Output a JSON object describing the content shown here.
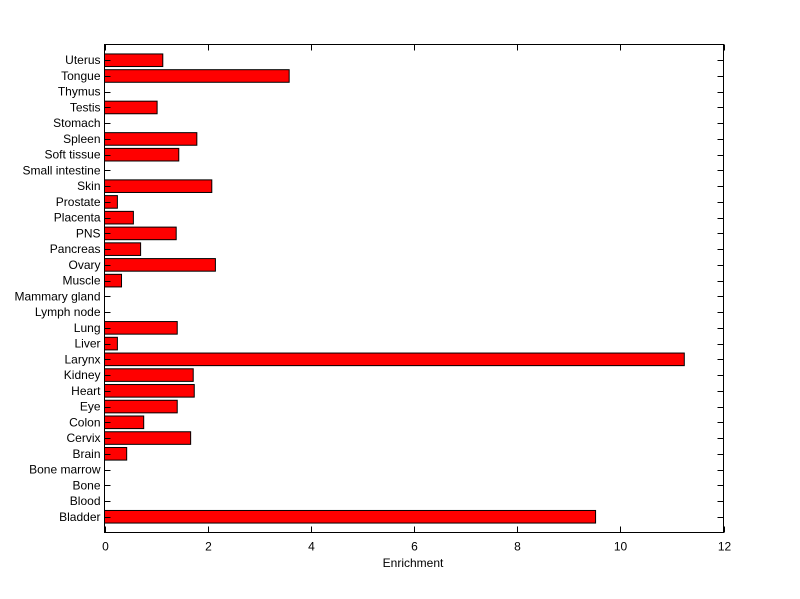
{
  "chart_data": {
    "type": "bar",
    "orientation": "horizontal",
    "title": "",
    "xlabel": "Enrichment",
    "ylabel": "",
    "xlim": [
      0,
      12
    ],
    "xticks": [
      0,
      2,
      4,
      6,
      8,
      10,
      12
    ],
    "grid": false,
    "bar_color": "#ff0000",
    "edge_color": "#000000",
    "categories": [
      "Bladder",
      "Blood",
      "Bone",
      "Bone marrow",
      "Brain",
      "Cervix",
      "Colon",
      "Eye",
      "Heart",
      "Kidney",
      "Larynx",
      "Liver",
      "Lung",
      "Lymph node",
      "Mammary gland",
      "Muscle",
      "Ovary",
      "Pancreas",
      "PNS",
      "Placenta",
      "Prostate",
      "Skin",
      "Small intestine",
      "Soft tissue",
      "Spleen",
      "Stomach",
      "Testis",
      "Thymus",
      "Tongue",
      "Uterus"
    ],
    "values": [
      9.52,
      0,
      0,
      0,
      0.43,
      1.67,
      0.76,
      1.41,
      1.74,
      1.72,
      11.24,
      0.25,
      1.41,
      0,
      0,
      0.33,
      2.15,
      0.7,
      1.39,
      0.56,
      0.25,
      2.08,
      0,
      1.44,
      1.79,
      0,
      1.02,
      0,
      3.58,
      1.13
    ]
  }
}
